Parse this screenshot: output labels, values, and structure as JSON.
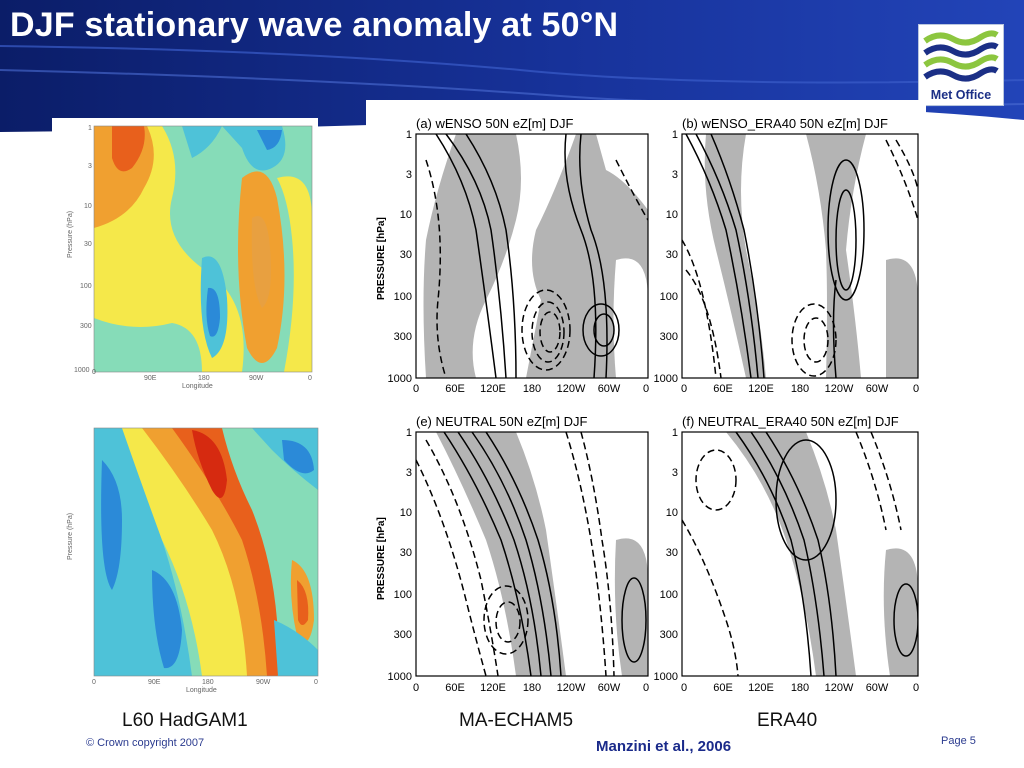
{
  "slide": {
    "title": "DJF stationary wave anomaly at 50°N",
    "logo_text": "Met Office",
    "labels": {
      "left": "L60 HadGAM1",
      "middle": "MA-ECHAM5",
      "right": "ERA40"
    },
    "reference": "Manzini et al., 2006",
    "copyright": "© Crown copyright 2007",
    "page": "Page 5"
  },
  "panels": {
    "a": {
      "header": "(a)   wENSO  50N   eZ[m]  DJF"
    },
    "b": {
      "header": "(b)  wENSO_ERA40  50N  eZ[m]  DJF"
    },
    "e": {
      "header": "(e)   NEUTRAL  50N  eZ[m]  DJF"
    },
    "f": {
      "header": "(f)  NEUTRAL_ERA40  50N  eZ[m]  DJF"
    },
    "y_axis_label": "PRESSURE [hPa]",
    "y_ticks": [
      "1",
      "3",
      "10",
      "30",
      "100",
      "300",
      "1000"
    ],
    "x_ticks": [
      "0",
      "60E",
      "120E",
      "180",
      "120W",
      "60W",
      "0"
    ],
    "had_y_label": "Pressure (hPa)",
    "had_x_label": "Longitude",
    "had_x_ticks": [
      "0",
      "90E",
      "180",
      "90W",
      "0"
    ]
  },
  "colors": {
    "banner_dark": "#0d1f6e",
    "banner_mid": "#1c3aa8",
    "title": "#ffffff",
    "shade": "#b4b4b4",
    "had_red": "#e8401c",
    "had_orange": "#f0a030",
    "had_yellow": "#f5e84a",
    "had_green": "#86dcb8",
    "had_cyan": "#4ec2d8",
    "had_blue": "#2b8ad8"
  }
}
